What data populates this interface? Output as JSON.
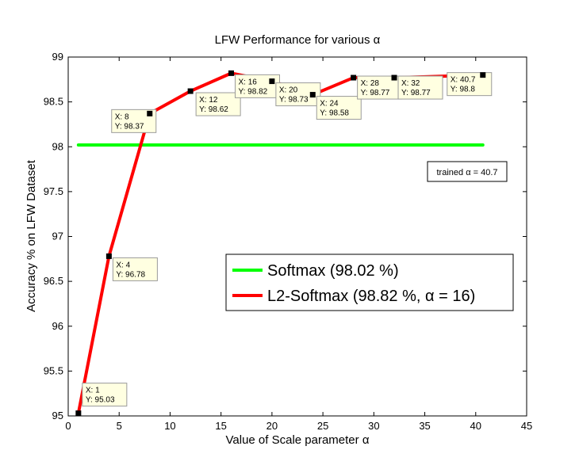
{
  "chart_data": {
    "type": "line",
    "title": "LFW Performance for various α",
    "xlabel": "Value of Scale parameter α",
    "ylabel": "Accuracy % on LFW Dataset",
    "xlim": [
      0,
      45
    ],
    "ylim": [
      95,
      99
    ],
    "xticks": [
      "0",
      "5",
      "10",
      "15",
      "20",
      "25",
      "30",
      "35",
      "40",
      "45"
    ],
    "yticks": [
      "95",
      "95.5",
      "96",
      "96.5",
      "97",
      "97.5",
      "98",
      "98.5",
      "99"
    ],
    "grid": false,
    "legend_position": "lower-right",
    "series": [
      {
        "name": "Softmax (98.02 %)",
        "color": "#00ff00",
        "x": [
          1,
          40.7
        ],
        "y": [
          98.02,
          98.02
        ]
      },
      {
        "name": "L2-Softmax (98.82 %, α = 16)",
        "color": "#ff0000",
        "x": [
          1,
          4,
          8,
          12,
          16,
          20,
          24,
          28,
          32,
          40.7
        ],
        "y": [
          95.03,
          96.78,
          98.37,
          98.62,
          98.82,
          98.73,
          98.58,
          98.77,
          98.77,
          98.8
        ]
      }
    ],
    "datatips": [
      {
        "x_label": "X: 1",
        "y_label": "Y: 95.03",
        "x": 1,
        "y": 95.03
      },
      {
        "x_label": "X: 4",
        "y_label": "Y: 96.78",
        "x": 4,
        "y": 96.78
      },
      {
        "x_label": "X: 8",
        "y_label": "Y: 98.37",
        "x": 8,
        "y": 98.37
      },
      {
        "x_label": "X: 12",
        "y_label": "Y: 98.62",
        "x": 12,
        "y": 98.62
      },
      {
        "x_label": "X: 16",
        "y_label": "Y: 98.82",
        "x": 16,
        "y": 98.82
      },
      {
        "x_label": "X: 20",
        "y_label": "Y: 98.73",
        "x": 20,
        "y": 98.73
      },
      {
        "x_label": "X: 24",
        "y_label": "Y: 98.58",
        "x": 24,
        "y": 98.58
      },
      {
        "x_label": "X: 28",
        "y_label": "Y: 98.77",
        "x": 28,
        "y": 98.77
      },
      {
        "x_label": "X: 32",
        "y_label": "Y: 98.77",
        "x": 32,
        "y": 98.77
      },
      {
        "x_label": "X: 40.7",
        "y_label": "Y: 98.8",
        "x": 40.7,
        "y": 98.8
      }
    ],
    "annotation": "trained α = 40.7",
    "datatip_background": "#ffffe1"
  }
}
